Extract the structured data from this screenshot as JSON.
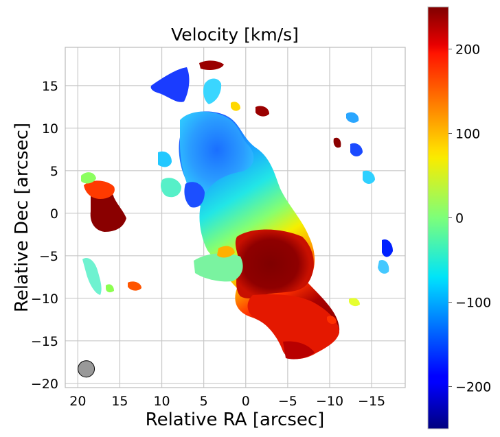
{
  "chart_data": {
    "type": "heatmap",
    "title": "Velocity [km/s]",
    "xlabel": "Relative RA [arcsec]",
    "ylabel": "Relative Dec [arcsec]",
    "xlim": [
      21.5,
      -19
    ],
    "ylim": [
      -20.5,
      19.5
    ],
    "x_ticks": [
      20,
      15,
      10,
      5,
      0,
      -5,
      -10,
      -15
    ],
    "x_tick_labels": [
      "20",
      "15",
      "10",
      "5",
      "0",
      "−5",
      "−10",
      "−15"
    ],
    "y_ticks": [
      15,
      10,
      5,
      0,
      -5,
      -10,
      -15,
      -20
    ],
    "y_tick_labels": [
      "15",
      "10",
      "5",
      "0",
      "−5",
      "−10",
      "−15",
      "−20"
    ],
    "grid": true,
    "colormap": "jet",
    "colorbar": {
      "range": [
        -250,
        250
      ],
      "ticks": [
        200,
        100,
        0,
        -100,
        -200
      ],
      "tick_labels": [
        "200",
        "100",
        "0",
        "−100",
        "−200"
      ]
    },
    "beam": {
      "x": 19,
      "y": -18.3,
      "color": "#999999"
    },
    "velocity_field": "rotating molecular gas disk: blueshifted (~ -150 km/s) in the north-east at around x=5, y=10, redshifted (~ +250 km/s) in the south-west at around x=-5, y=-7, with patchy emission to the east and west"
  }
}
